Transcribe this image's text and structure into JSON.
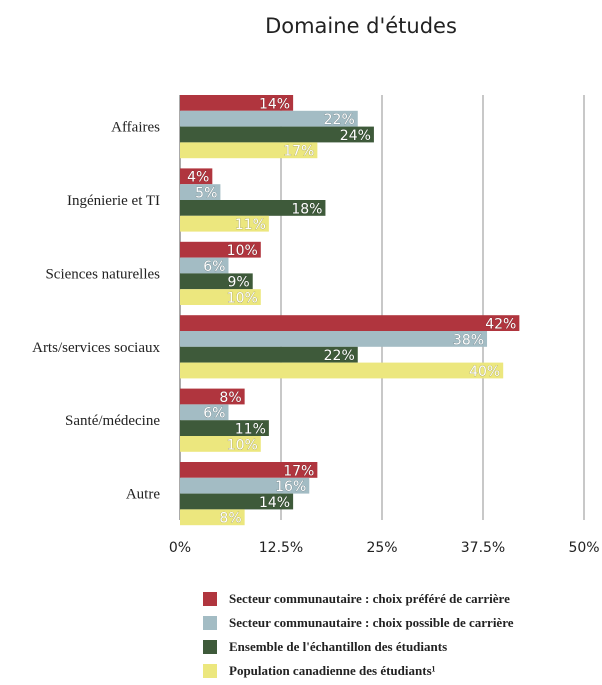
{
  "chart_data": {
    "type": "bar",
    "orientation": "horizontal",
    "title": "Domaine d'études",
    "categories": [
      "Affaires",
      "Ingénierie et TI",
      "Sciences naturelles",
      "Arts/services sociaux",
      "Santé/médecine",
      "Autre"
    ],
    "series": [
      {
        "name": "Secteur communautaire : choix préféré de carrière",
        "color": "#b0353e",
        "values": [
          14,
          4,
          10,
          42,
          8,
          17
        ]
      },
      {
        "name": "Secteur communautaire : choix possible de carrière",
        "color": "#a3bcc4",
        "values": [
          22,
          5,
          6,
          38,
          6,
          16
        ]
      },
      {
        "name": "Ensemble de l'échantillon des étudiants",
        "color": "#3e5a3a",
        "values": [
          24,
          18,
          9,
          22,
          11,
          14
        ]
      },
      {
        "name": "Population canadienne des étudiants¹",
        "color": "#ece77e",
        "values": [
          17,
          11,
          10,
          40,
          10,
          8
        ]
      }
    ],
    "xlim": [
      0,
      50
    ],
    "xticks": [
      "0%",
      "12.5%",
      "25%",
      "37.5%",
      "50%"
    ],
    "grid": true,
    "legend_position": "bottom"
  }
}
